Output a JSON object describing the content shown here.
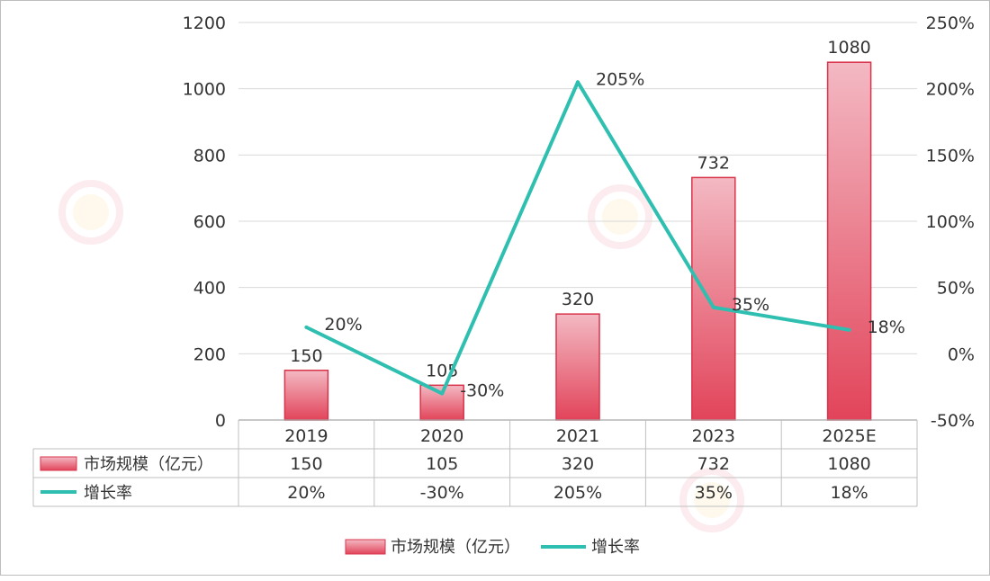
{
  "chart_data": {
    "type": "bar+line",
    "categories": [
      "2019",
      "2020",
      "2021",
      "2023",
      "2025E"
    ],
    "series": [
      {
        "name": "市场规模（亿元）",
        "type": "bar",
        "axis": "left",
        "values": [
          150,
          105,
          320,
          732,
          1080
        ],
        "value_labels": [
          "150",
          "105",
          "320",
          "732",
          "1080"
        ]
      },
      {
        "name": "增长率",
        "type": "line",
        "axis": "right",
        "values": [
          20,
          -30,
          205,
          35,
          18
        ],
        "value_labels": [
          "20%",
          "-30%",
          "205%",
          "35%",
          "18%"
        ]
      }
    ],
    "left_axis": {
      "min": 0,
      "max": 1200,
      "ticks": [
        "0",
        "200",
        "400",
        "600",
        "800",
        "1000",
        "1200"
      ]
    },
    "right_axis": {
      "min": -50,
      "max": 250,
      "unit": "%",
      "ticks": [
        "-50%",
        "0%",
        "50%",
        "100%",
        "150%",
        "200%",
        "250%"
      ]
    },
    "grid": true,
    "data_table": true,
    "legend_position": "bottom",
    "colors": {
      "bar_top": "#f3b9c3",
      "bar_bottom": "#e2445a",
      "bar_border": "#d8344c",
      "line": "#2ebfb0",
      "grid": "#d9d9d9"
    }
  }
}
